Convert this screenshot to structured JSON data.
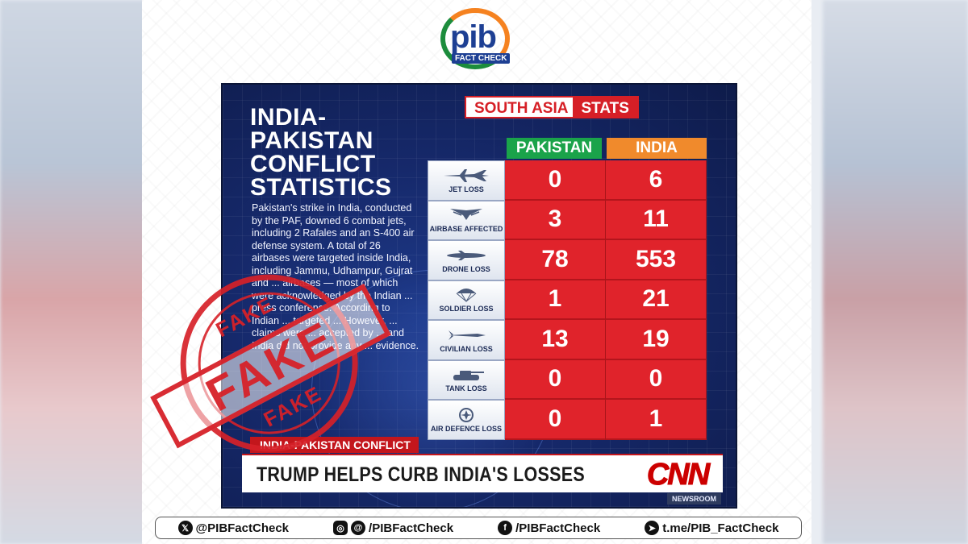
{
  "logo": {
    "pib_text": "pib",
    "fact_check_text": "FACT CHECK"
  },
  "graphic": {
    "title_lines": [
      "INDIA-",
      "PAKISTAN",
      "CONFLICT",
      "STATISTICS"
    ],
    "body_text": "Pakistan's strike in India, conducted by the PAF, downed 6 combat jets, including 2 Rafales and an S-400 air defense system. A total of 26 airbases were targeted inside India, including Jammu, Udhampur, Gujrat and ... airbases — most of which were acknowledged by the Indian ... press conference. According to Indian ... targeted ... However, ... claims were ... accepted by ... and India did not provide any ... evidence.",
    "badge": {
      "left": "SOUTH ASIA",
      "right": "STATS"
    },
    "columns": {
      "pakistan": "PAKISTAN",
      "india": "INDIA"
    },
    "rows": [
      {
        "icon": "jet-icon",
        "label": "JET LOSS",
        "pakistan": "0",
        "india": "6"
      },
      {
        "icon": "airbase-icon",
        "label": "AIRBASE AFFECTED",
        "pakistan": "3",
        "india": "11"
      },
      {
        "icon": "drone-icon",
        "label": "DRONE LOSS",
        "pakistan": "78",
        "india": "553"
      },
      {
        "icon": "parachute-icon",
        "label": "SOLDIER LOSS",
        "pakistan": "1",
        "india": "21"
      },
      {
        "icon": "missile-icon",
        "label": "CIVILIAN LOSS",
        "pakistan": "13",
        "india": "19"
      },
      {
        "icon": "tank-icon",
        "label": "TANK LOSS",
        "pakistan": "0",
        "india": "0"
      },
      {
        "icon": "air-defence-icon",
        "label": "AIR DEFENCE LOSS",
        "pakistan": "0",
        "india": "1"
      }
    ],
    "ticker_tag": "INDIA-PAKISTAN CONFLICT",
    "headline": "TRUMP HELPS CURB INDIA'S LOSSES",
    "network": "CNN",
    "newsroom": "NEWSROOM"
  },
  "stamp": {
    "main": "FAKE",
    "top": "FAKE",
    "bottom": "FAKE"
  },
  "social": [
    {
      "icon": "x-icon",
      "handle": "@PIBFactCheck"
    },
    {
      "icon": "instagram-threads-icon",
      "handle": "/PIBFactCheck"
    },
    {
      "icon": "facebook-icon",
      "handle": "/PIBFactCheck"
    },
    {
      "icon": "telegram-icon",
      "handle": "t.me/PIB_FactCheck"
    }
  ],
  "colors": {
    "cnn_red": "#cc0000",
    "table_red": "#e0232b",
    "pakistan_green": "#1aa34a",
    "india_orange": "#f08a2c",
    "stamp_red": "#d62128",
    "navy": "#16296b"
  }
}
